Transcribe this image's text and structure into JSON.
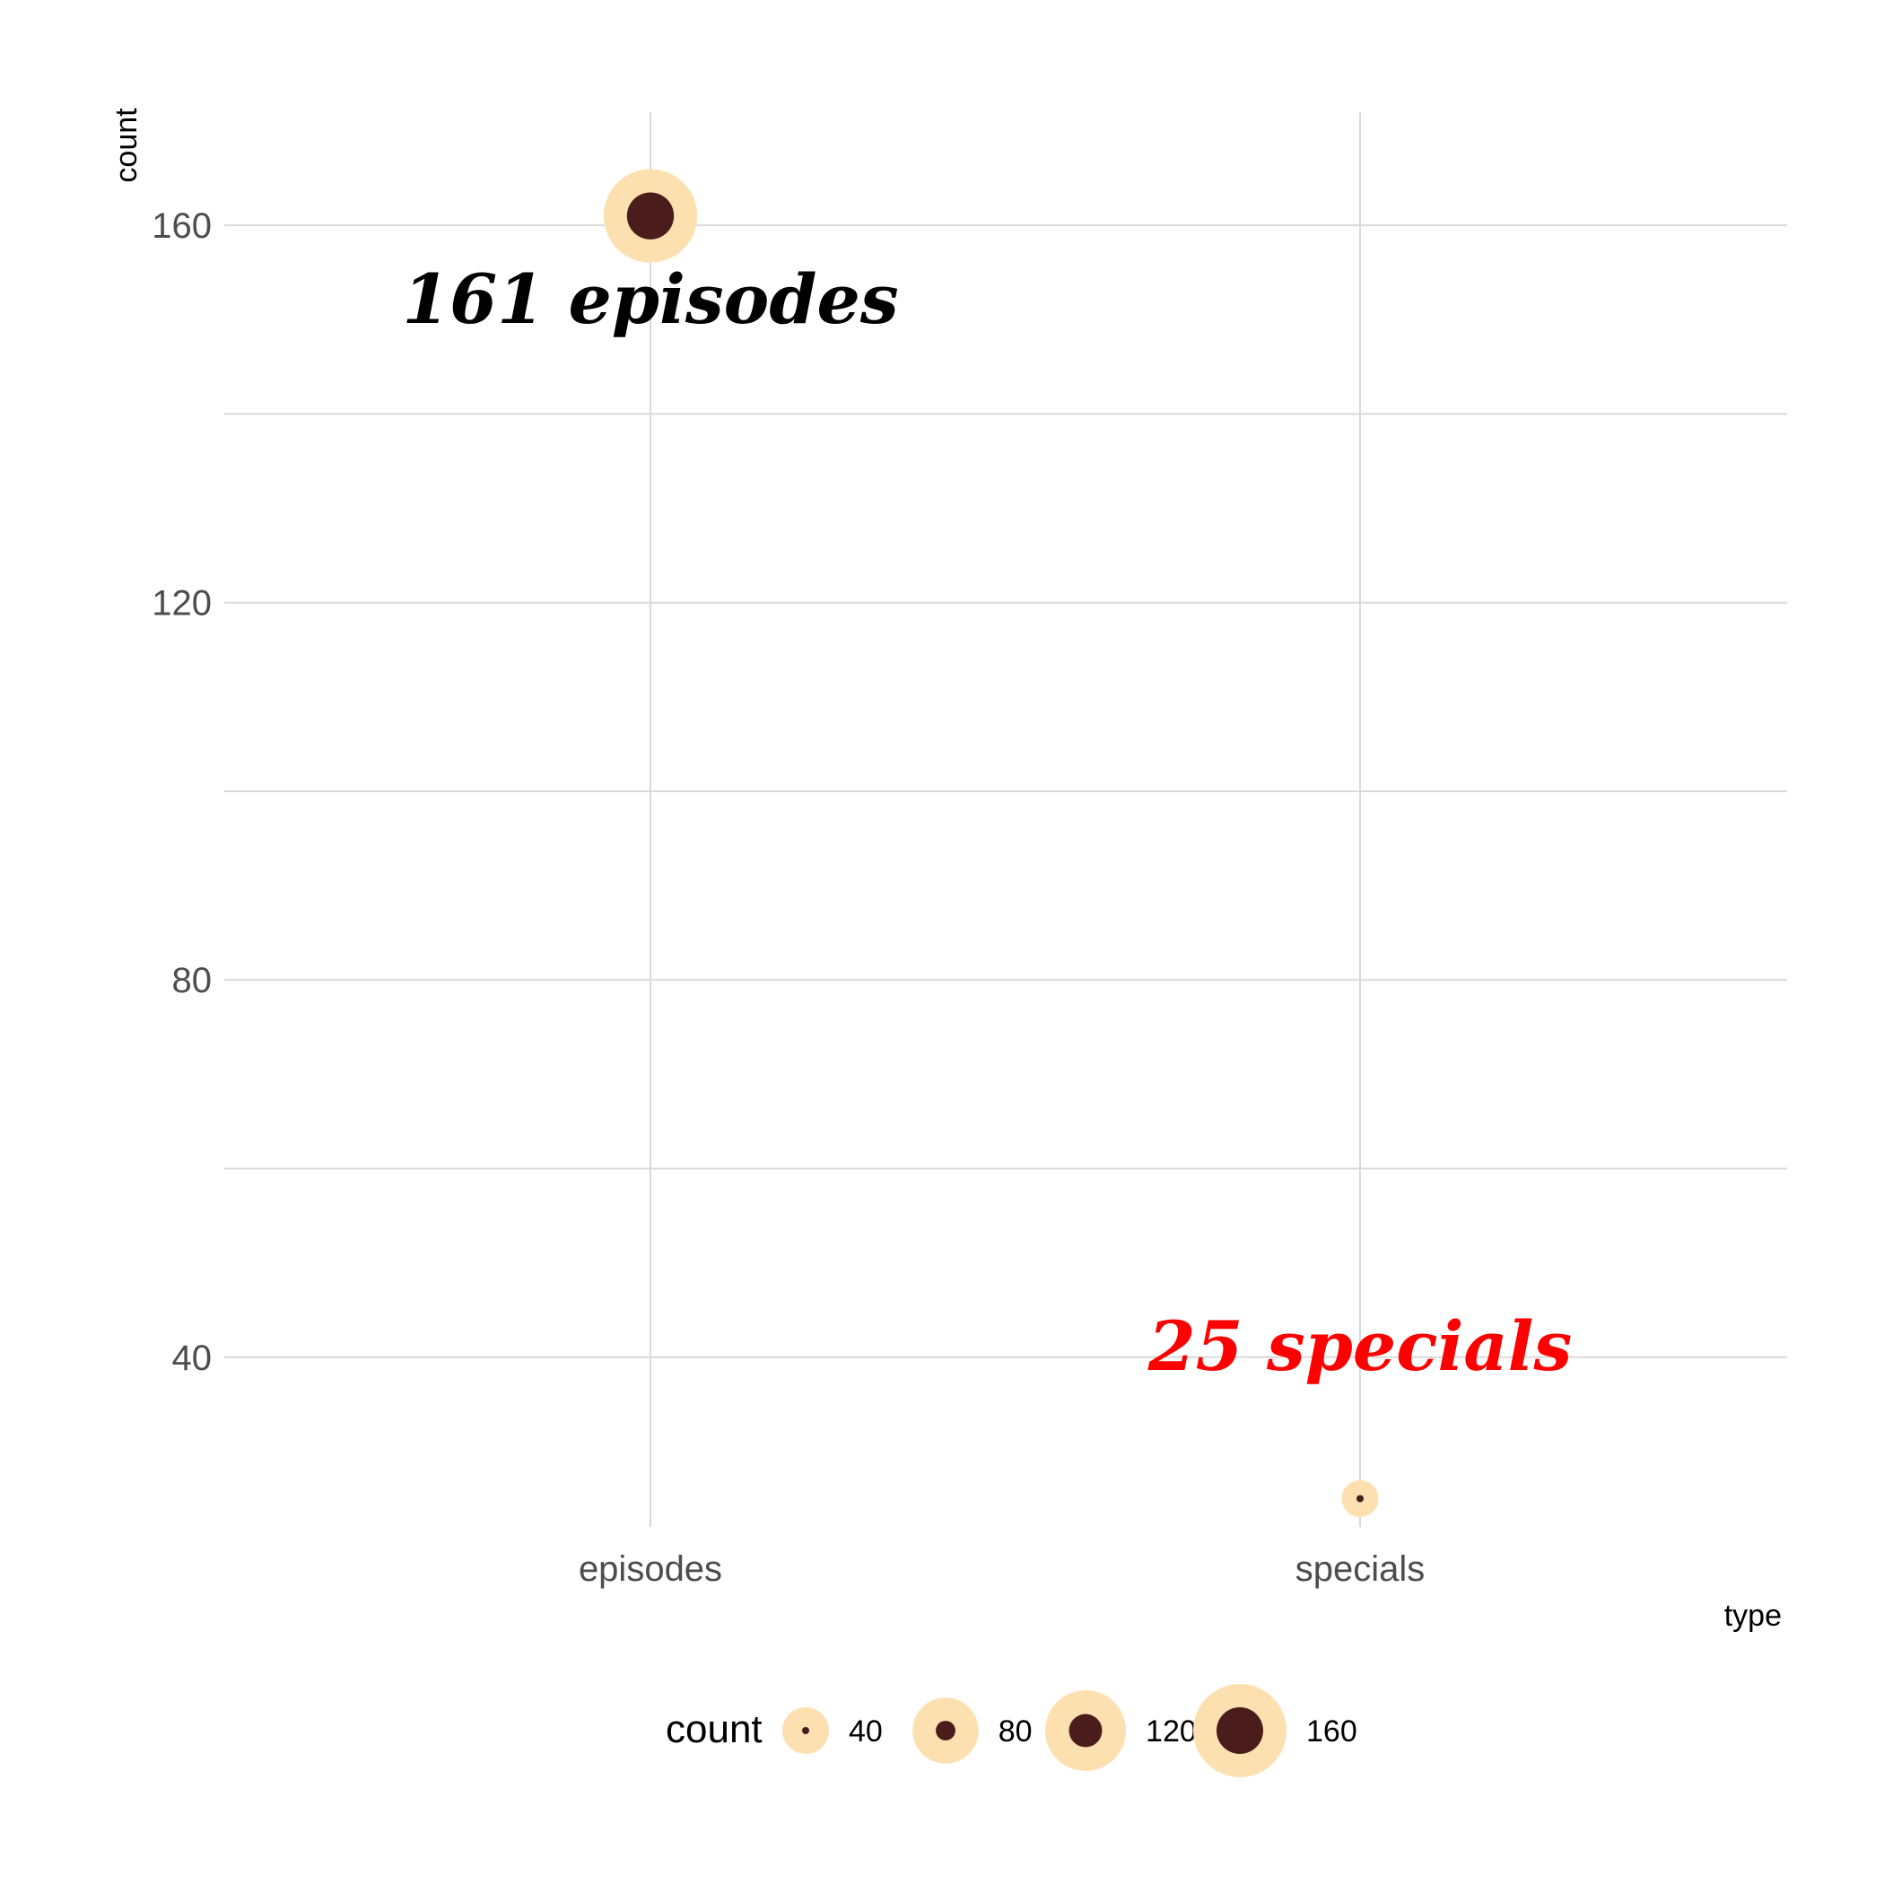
{
  "chart_data": {
    "type": "scatter",
    "xlabel": "type",
    "ylabel": "count",
    "categories": [
      "episodes",
      "specials"
    ],
    "values": [
      161,
      25
    ],
    "ylim": [
      22,
      172
    ],
    "y_ticks": [
      40,
      80,
      120,
      160
    ],
    "grid": true,
    "size_mapped_to": "count",
    "legend": {
      "title": "count",
      "position": "bottom",
      "breaks": [
        40,
        80,
        120,
        160
      ]
    },
    "annotations": [
      {
        "text": "161 episodes",
        "x": "episodes",
        "y": 151,
        "color": "#000000"
      },
      {
        "text": "25 specials",
        "x": "specials",
        "y": 40,
        "color": "#ff0000"
      }
    ],
    "colors": {
      "outer": "#fde0b0",
      "inner": "#4a1c1c",
      "grid": "#d9d9d9"
    }
  }
}
